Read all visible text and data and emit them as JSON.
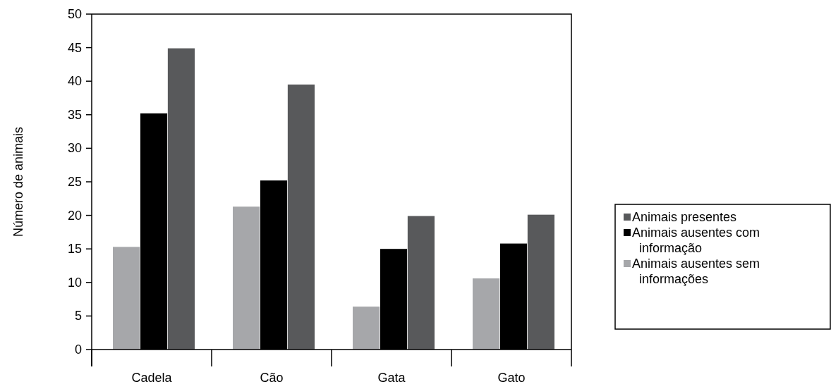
{
  "chart_data": {
    "type": "bar",
    "ylabel": "Número de animais",
    "categories": [
      "Cadela",
      "Cão",
      "Gata",
      "Gato"
    ],
    "series": [
      {
        "name": "Animais ausentes sem informações",
        "color": "#a6a7aa",
        "values": [
          15.3,
          21.3,
          6.4,
          10.6
        ]
      },
      {
        "name": "Animais ausentes com informação",
        "color": "#000000",
        "values": [
          35.2,
          25.2,
          15,
          15.8
        ]
      },
      {
        "name": "Animais presentes",
        "color": "#58595b",
        "values": [
          44.9,
          39.5,
          19.9,
          20.1
        ]
      }
    ],
    "ylim": [
      0,
      50
    ],
    "yticks": [
      0,
      5,
      10,
      15,
      20,
      25,
      30,
      35,
      40,
      45,
      50
    ],
    "grid": false,
    "legend": "right"
  }
}
